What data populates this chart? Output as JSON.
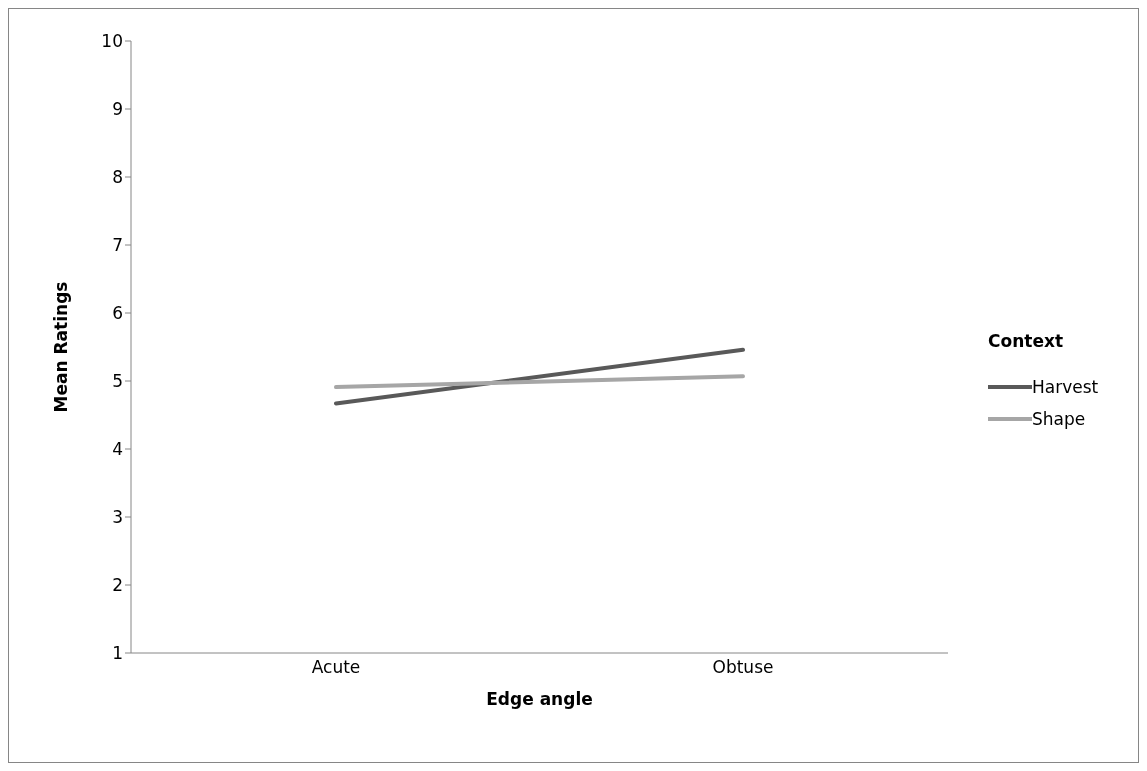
{
  "chart_data": {
    "type": "line",
    "xlabel": "Edge angle",
    "ylabel": "Mean Ratings",
    "legend_title": "Context",
    "categories": [
      "Acute",
      "Obtuse"
    ],
    "series": [
      {
        "name": "Harvest",
        "color": "#595959",
        "values": [
          4.67,
          5.46
        ]
      },
      {
        "name": "Shape",
        "color": "#a6a6a6",
        "values": [
          4.91,
          5.07
        ]
      }
    ],
    "ylim": [
      1,
      10
    ],
    "yticks": [
      1,
      2,
      3,
      4,
      5,
      6,
      7,
      8,
      9,
      10
    ],
    "grid": false,
    "legend": "right",
    "marker": "none",
    "line_style": "solid"
  }
}
